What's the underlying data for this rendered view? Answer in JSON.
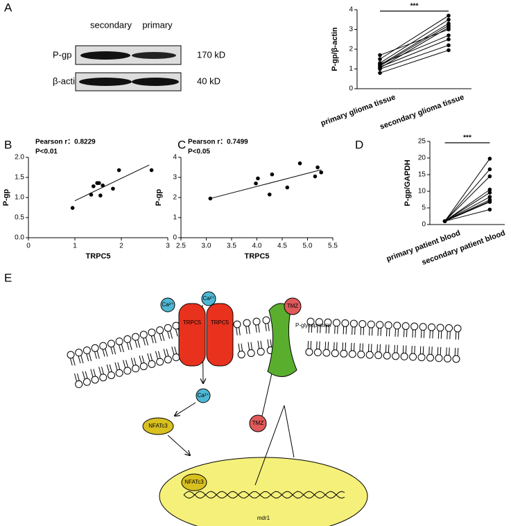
{
  "panel_labels": [
    "A",
    "B",
    "C",
    "D",
    "E"
  ],
  "blot": {
    "lanes": [
      "secondary",
      "primary"
    ],
    "rows": [
      {
        "label": "P-gp",
        "size": "170 kD"
      },
      {
        "label": "β-actin",
        "size": "40 kD"
      }
    ]
  },
  "chart_data": [
    {
      "type": "paired",
      "ylabel": "P-gp/β-actin",
      "categories": [
        "primary glioma tissue",
        "secondary glioma tissue"
      ],
      "values": [
        [
          1.7,
          3.0
        ],
        [
          1.5,
          3.7
        ],
        [
          1.3,
          3.5
        ],
        [
          1.25,
          2.7
        ],
        [
          1.2,
          3.3
        ],
        [
          1.15,
          3.2
        ],
        [
          1.1,
          2.5
        ],
        [
          1.05,
          3.1
        ],
        [
          1.0,
          2.2
        ],
        [
          0.8,
          1.95
        ]
      ],
      "annotation": "***",
      "color": "#000000",
      "ylim": [
        0,
        4
      ],
      "yticks": [
        0,
        1,
        2,
        3,
        4
      ]
    },
    {
      "type": "scatter",
      "xlabel": "TRPC5",
      "ylabel": "P-gp",
      "annotations": [
        "Pearson r：0.8229",
        "P<0.01"
      ],
      "x": [
        0.95,
        1.35,
        1.4,
        1.48,
        1.52,
        1.55,
        1.6,
        1.82,
        1.95,
        2.65
      ],
      "y": [
        0.74,
        1.07,
        1.28,
        1.36,
        1.36,
        1.05,
        1.3,
        1.22,
        1.68,
        1.68
      ],
      "fit": {
        "x": [
          1.0,
          2.6
        ],
        "y": [
          0.92,
          1.81
        ]
      },
      "color": "#000000",
      "xlim": [
        0,
        3
      ],
      "xticks": [
        0,
        1,
        2,
        3
      ],
      "ylim": [
        0,
        2
      ],
      "yticks": [
        {
          "value": 0,
          "label": "0.0"
        },
        0.5,
        {
          "value": 1,
          "label": "1.0"
        },
        1.5,
        {
          "value": 2,
          "label": "2.0"
        }
      ]
    },
    {
      "type": "scatter",
      "xlabel": "TRPC5",
      "ylabel": "P-gp",
      "annotations": [
        "Pearson r：0.7499",
        "P<0.05"
      ],
      "x": [
        3.08,
        3.98,
        4.02,
        4.25,
        4.3,
        4.6,
        4.85,
        5.15,
        5.2,
        5.27
      ],
      "y": [
        1.95,
        2.7,
        2.95,
        2.15,
        3.15,
        2.5,
        3.7,
        3.05,
        3.5,
        3.25
      ],
      "fit": {
        "x": [
          3.08,
          5.27
        ],
        "y": [
          1.95,
          3.38
        ]
      },
      "color": "#000000",
      "xlim": [
        2.5,
        5.5
      ],
      "xticks": [
        2.5,
        {
          "value": 3,
          "label": "3.0"
        },
        3.5,
        {
          "value": 4,
          "label": "4.0"
        },
        4.5,
        {
          "value": 5,
          "label": "5.0"
        },
        5.5
      ],
      "ylim": [
        0,
        4
      ],
      "yticks": [
        0,
        1,
        2,
        3,
        4
      ]
    },
    {
      "type": "paired",
      "ylabel": "P-gp/GAPDH",
      "categories": [
        "primary patient blood",
        "secondary patient blood"
      ],
      "values": [
        [
          1,
          19.8
        ],
        [
          1,
          16.6
        ],
        [
          1,
          14.5
        ],
        [
          1,
          10.5
        ],
        [
          1,
          9.6
        ],
        [
          1,
          8.3
        ],
        [
          1,
          7.4
        ],
        [
          1,
          7.0
        ],
        [
          1,
          6.8
        ],
        [
          1,
          4.5
        ]
      ],
      "annotation": "***",
      "color": "#000000",
      "ylim": [
        0,
        25
      ],
      "yticks": [
        0,
        5,
        10,
        15,
        20,
        25
      ]
    }
  ],
  "diagram": {
    "ca": [
      "Ca²⁺",
      "Ca²⁺",
      "Ca²⁺"
    ],
    "trpc5": [
      "TRPC5",
      "TRPC5"
    ],
    "tmz": [
      "TMZ",
      "TMZ"
    ],
    "pgp": "P-glycoprotein",
    "nfatc3": [
      "NFATc3",
      "NFATc3"
    ],
    "gene": "mdr1"
  }
}
